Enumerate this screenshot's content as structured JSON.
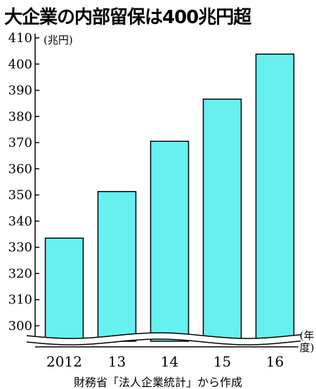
{
  "chart_data": {
    "type": "bar",
    "title": "大企業の内部留保は400兆円超",
    "ylabel": "(兆円)",
    "xlabel": "年度",
    "categories": [
      "2012",
      "13",
      "14",
      "15",
      "16"
    ],
    "values": [
      333.5,
      351.3,
      370.5,
      386.6,
      403.8
    ],
    "ylim": [
      300,
      410
    ],
    "yticks": [
      "300",
      "310",
      "320",
      "330",
      "340",
      "350",
      "360",
      "370",
      "380",
      "390",
      "400",
      "410"
    ],
    "axis_break": true,
    "grid": false,
    "legend": "none",
    "bar_color": "#66f0f0",
    "source": "財務省「法人企業統計」から作成"
  }
}
